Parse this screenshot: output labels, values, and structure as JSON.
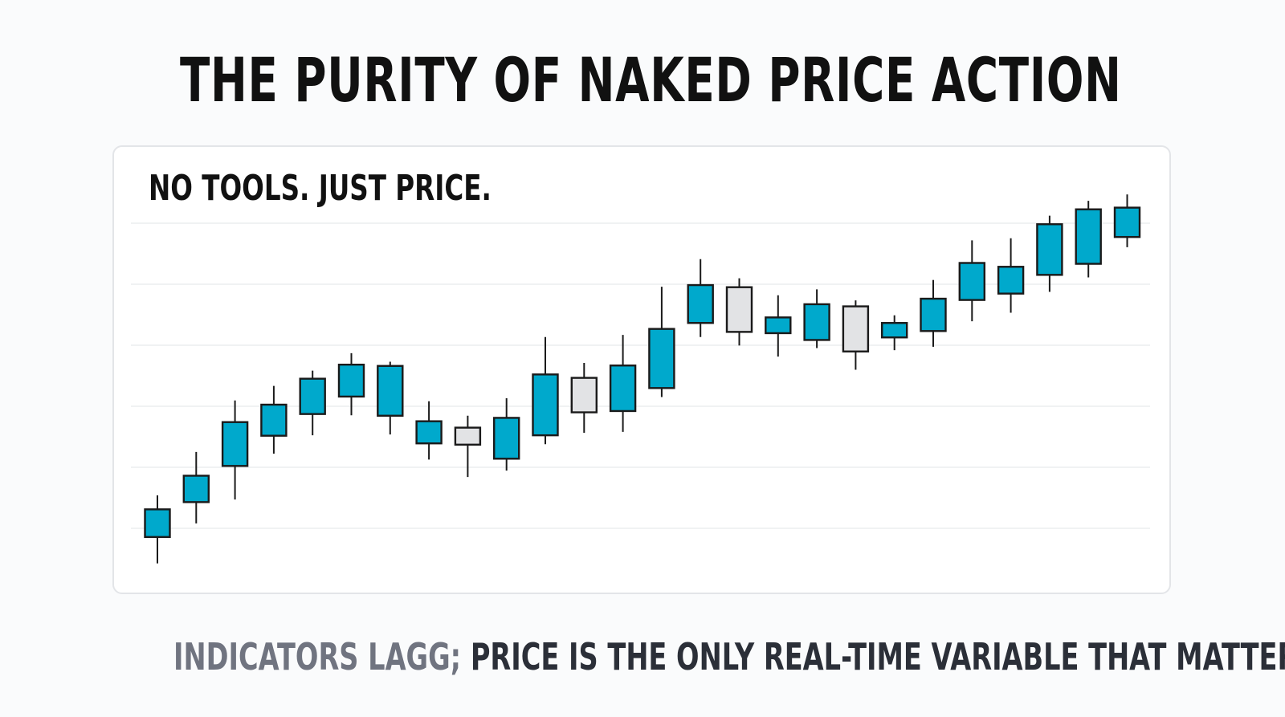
{
  "title": "THE PURITY OF NAKED PRICE ACTION",
  "caption": {
    "part1": "INDICATORS LAGG;",
    "part2": "PRICE IS THE ONLY REAL-TIME VARIABLE THAT MATTERS."
  },
  "colors": {
    "bullish": "#00a9cc",
    "bearish": "#e2e3e5",
    "outline": "#1a1a1a",
    "grid": "#e7e9ec",
    "caption_muted": "#707480",
    "caption_dark": "#2b2f38"
  },
  "chart_data": {
    "type": "candlestick",
    "title": "NO TOOLS. JUST PRICE.",
    "xlabel": "",
    "ylabel": "",
    "grid": true,
    "ylim": [
      0,
      100
    ],
    "candles": [
      {
        "open": 10.6,
        "high": 20.4,
        "low": 4.4,
        "close": 17.1
      },
      {
        "open": 18.8,
        "high": 30.6,
        "low": 13.8,
        "close": 25.0
      },
      {
        "open": 27.3,
        "high": 42.7,
        "low": 19.4,
        "close": 37.6
      },
      {
        "open": 34.4,
        "high": 46.1,
        "low": 30.2,
        "close": 41.7
      },
      {
        "open": 39.5,
        "high": 49.7,
        "low": 34.5,
        "close": 47.8
      },
      {
        "open": 43.6,
        "high": 53.8,
        "low": 39.2,
        "close": 51.1
      },
      {
        "open": 39.1,
        "high": 51.8,
        "low": 34.7,
        "close": 50.8
      },
      {
        "open": 32.6,
        "high": 42.5,
        "low": 28.8,
        "close": 37.8
      },
      {
        "open": 36.3,
        "high": 39.1,
        "low": 24.7,
        "close": 32.3
      },
      {
        "open": 29.0,
        "high": 43.2,
        "low": 26.2,
        "close": 38.6
      },
      {
        "open": 34.5,
        "high": 57.6,
        "low": 32.4,
        "close": 48.8
      },
      {
        "open": 48.0,
        "high": 51.5,
        "low": 35.1,
        "close": 39.9
      },
      {
        "open": 40.2,
        "high": 58.1,
        "low": 35.3,
        "close": 50.9
      },
      {
        "open": 45.6,
        "high": 69.4,
        "low": 43.5,
        "close": 59.5
      },
      {
        "open": 60.9,
        "high": 75.9,
        "low": 57.6,
        "close": 69.8
      },
      {
        "open": 69.3,
        "high": 71.4,
        "low": 55.6,
        "close": 58.8
      },
      {
        "open": 58.5,
        "high": 67.4,
        "low": 53.0,
        "close": 62.2
      },
      {
        "open": 56.9,
        "high": 68.8,
        "low": 55.0,
        "close": 65.3
      },
      {
        "open": 64.8,
        "high": 66.2,
        "low": 49.9,
        "close": 54.2
      },
      {
        "open": 57.5,
        "high": 62.7,
        "low": 54.5,
        "close": 60.9
      },
      {
        "open": 59.0,
        "high": 71.0,
        "low": 55.3,
        "close": 66.6
      },
      {
        "open": 66.3,
        "high": 80.3,
        "low": 61.3,
        "close": 75.0
      },
      {
        "open": 67.8,
        "high": 80.8,
        "low": 63.3,
        "close": 74.1
      },
      {
        "open": 72.2,
        "high": 86.1,
        "low": 68.2,
        "close": 84.1
      },
      {
        "open": 74.8,
        "high": 89.6,
        "low": 71.6,
        "close": 87.6
      },
      {
        "open": 81.1,
        "high": 91.1,
        "low": 78.7,
        "close": 88.0
      }
    ]
  }
}
